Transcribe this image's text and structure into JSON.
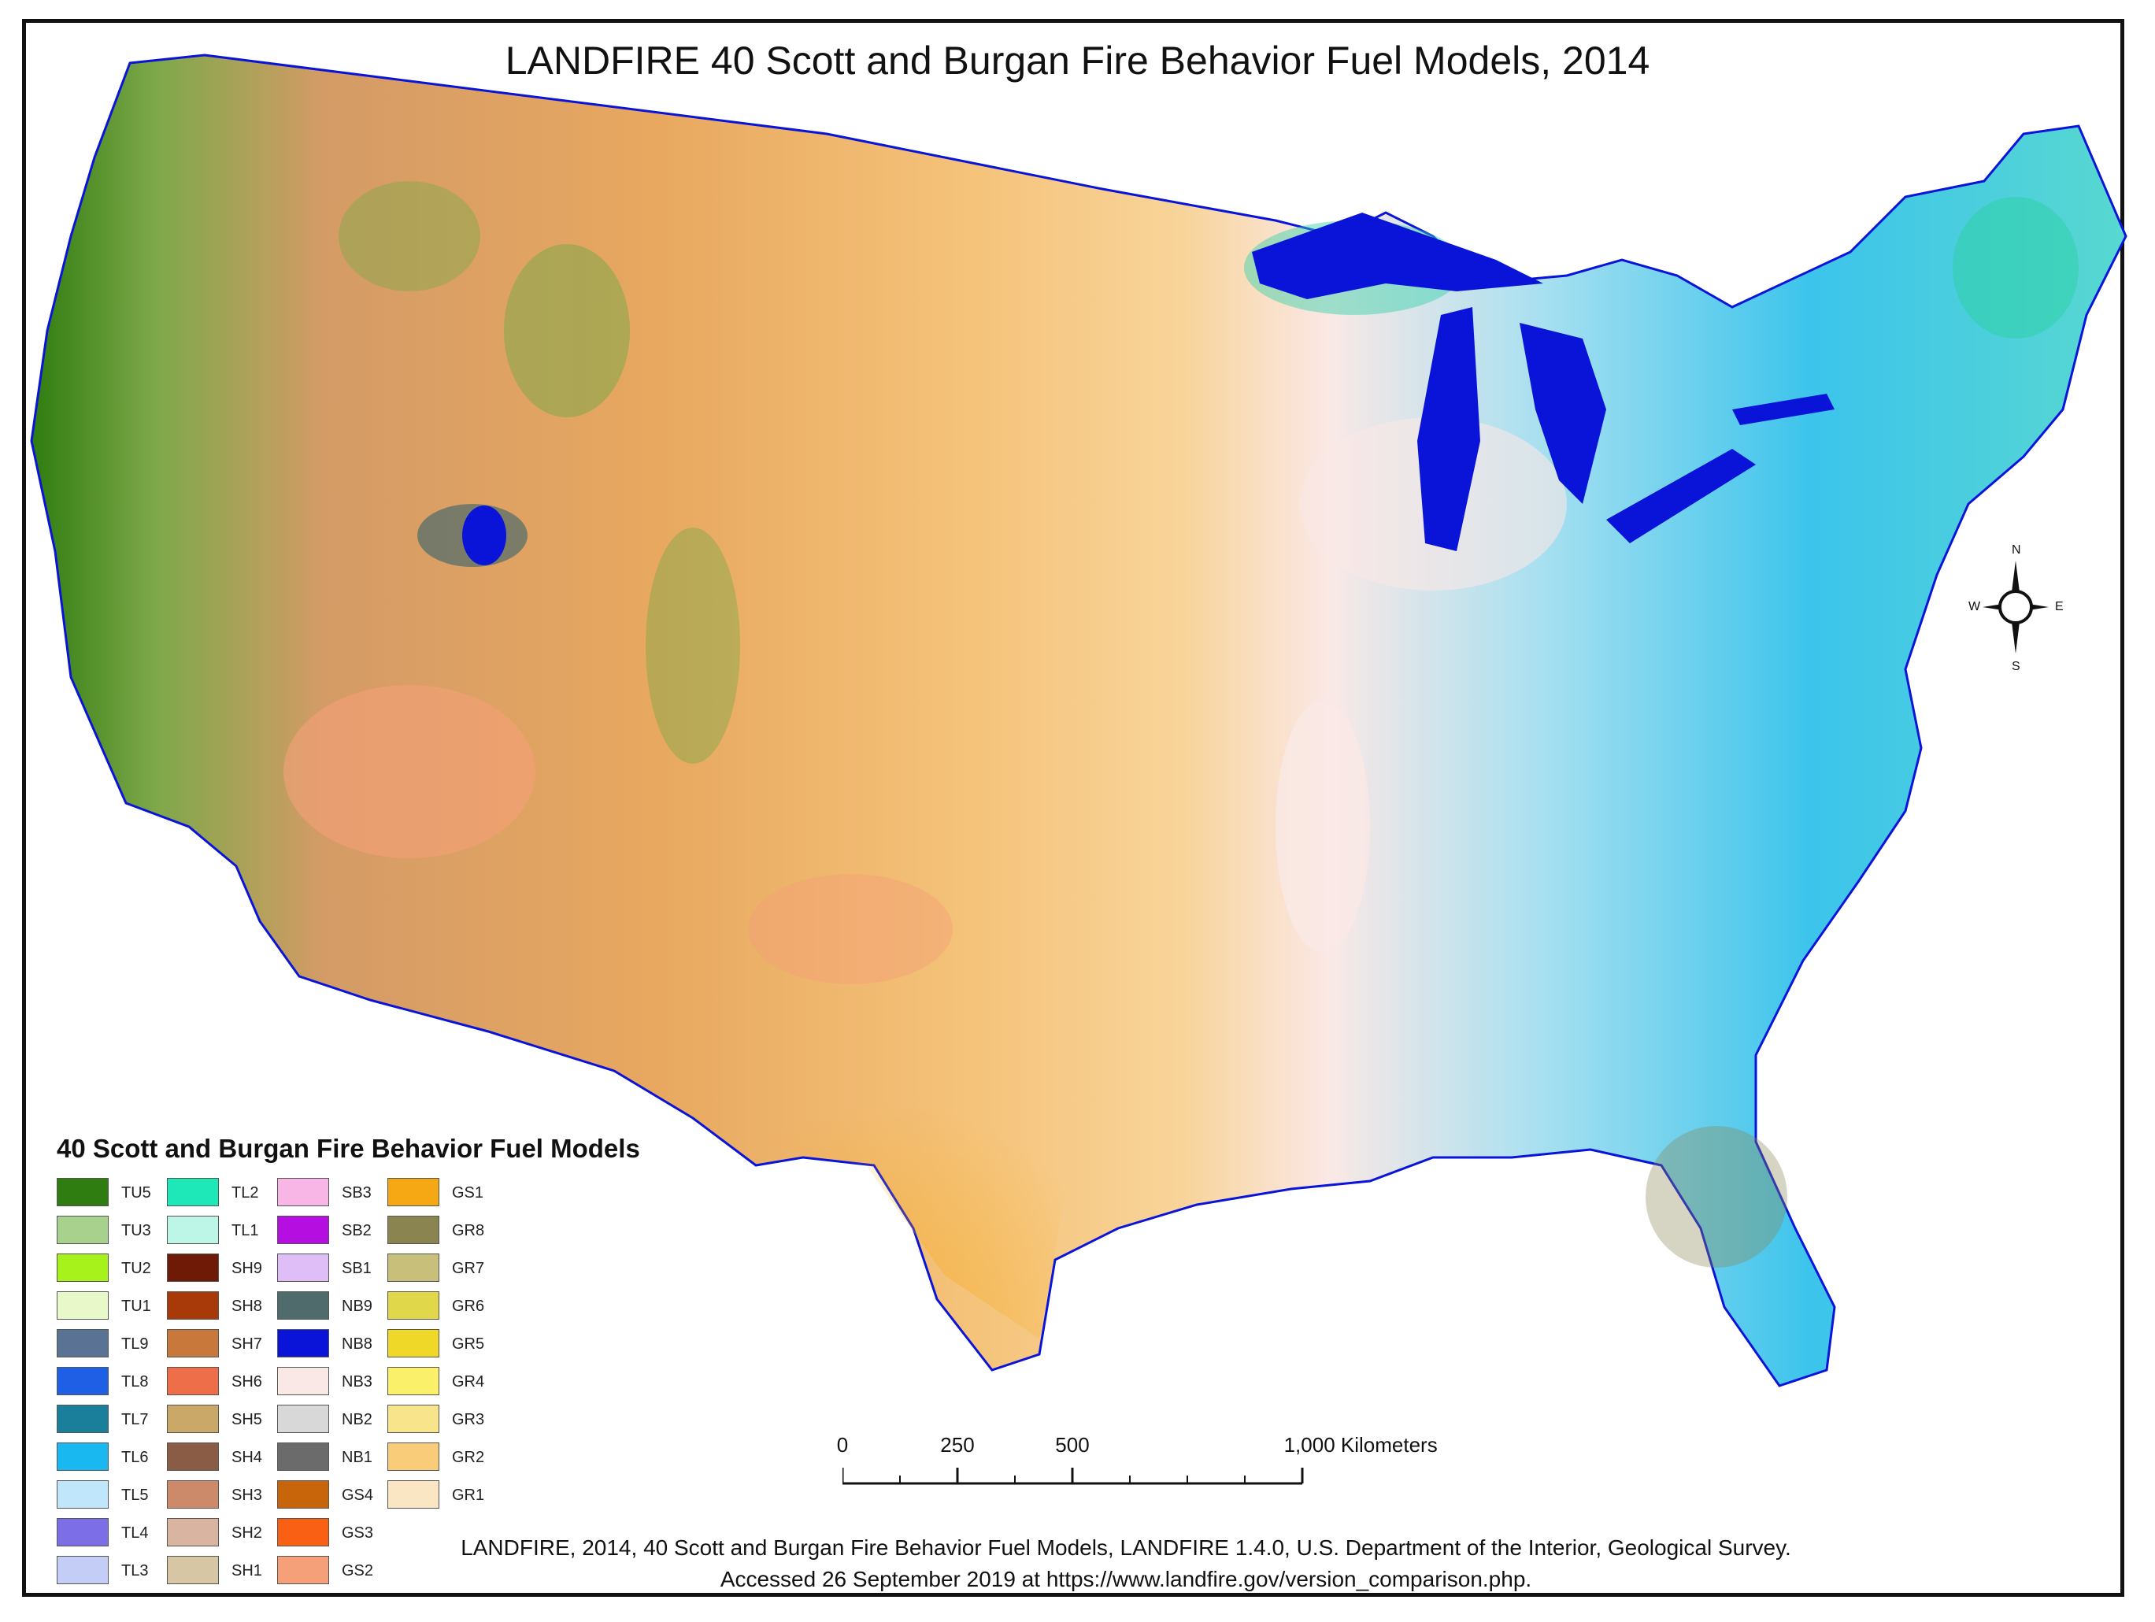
{
  "title": "LANDFIRE 40 Scott and Burgan Fire Behavior Fuel Models, 2014",
  "legend": {
    "title": "40 Scott and Burgan Fire Behavior Fuel Models",
    "columns": [
      [
        {
          "code": "TU5",
          "color": "#2f7d10"
        },
        {
          "code": "TU3",
          "color": "#a9d18e"
        },
        {
          "code": "TU2",
          "color": "#a6f21a"
        },
        {
          "code": "TU1",
          "color": "#e8f8c8"
        },
        {
          "code": "TL9",
          "color": "#5a7394"
        },
        {
          "code": "TL8",
          "color": "#1e5fe6"
        },
        {
          "code": "TL7",
          "color": "#1a7f9a"
        },
        {
          "code": "TL6",
          "color": "#1ab8f0"
        },
        {
          "code": "TL5",
          "color": "#bfe6fb"
        },
        {
          "code": "TL4",
          "color": "#7b6ee6"
        },
        {
          "code": "TL3",
          "color": "#c3cdf5"
        }
      ],
      [
        {
          "code": "TL2",
          "color": "#1ee8b8"
        },
        {
          "code": "TL1",
          "color": "#bdf5e6"
        },
        {
          "code": "SH9",
          "color": "#6e1a06"
        },
        {
          "code": "SH8",
          "color": "#a83a0a"
        },
        {
          "code": "SH7",
          "color": "#c8783a"
        },
        {
          "code": "SH6",
          "color": "#ee6e4a"
        },
        {
          "code": "SH5",
          "color": "#c9a868"
        },
        {
          "code": "SH4",
          "color": "#8a5c46"
        },
        {
          "code": "SH3",
          "color": "#cd8a6a"
        },
        {
          "code": "SH2",
          "color": "#d9b4a0"
        },
        {
          "code": "SH1",
          "color": "#d7c6a3"
        }
      ],
      [
        {
          "code": "SB3",
          "color": "#f7b6e6"
        },
        {
          "code": "SB2",
          "color": "#b40ee0"
        },
        {
          "code": "SB1",
          "color": "#dfbdf7"
        },
        {
          "code": "NB9",
          "color": "#4f6b6b"
        },
        {
          "code": "NB8",
          "color": "#0a14d9"
        },
        {
          "code": "NB3",
          "color": "#fae8e6"
        },
        {
          "code": "NB2",
          "color": "#d8d8d8"
        },
        {
          "code": "NB1",
          "color": "#6b6b6b"
        },
        {
          "code": "GS4",
          "color": "#c8640a"
        },
        {
          "code": "GS3",
          "color": "#fa6014"
        },
        {
          "code": "GS2",
          "color": "#f5a078"
        }
      ],
      [
        {
          "code": "GS1",
          "color": "#f5a814"
        },
        {
          "code": "GR8",
          "color": "#8a8450"
        },
        {
          "code": "GR7",
          "color": "#c8c07a"
        },
        {
          "code": "GR6",
          "color": "#e0d84a"
        },
        {
          "code": "GR5",
          "color": "#f0d828"
        },
        {
          "code": "GR4",
          "color": "#faf06a"
        },
        {
          "code": "GR3",
          "color": "#f8e48a"
        },
        {
          "code": "GR2",
          "color": "#f8cc78"
        },
        {
          "code": "GR1",
          "color": "#fbe6c3"
        }
      ]
    ]
  },
  "scale_bar": {
    "labels": [
      "0",
      "250",
      "500",
      "1,000 Kilometers"
    ],
    "values_km": [
      0,
      250,
      500,
      1000
    ]
  },
  "compass": {
    "north": "N",
    "south": "S",
    "east": "E",
    "west": "W"
  },
  "citation": {
    "line1": "LANDFIRE, 2014, 40 Scott and Burgan Fire Behavior Fuel Models, LANDFIRE 1.4.0, U.S. Department of the Interior, Geological Survey.",
    "line2": "Accessed 26 September 2019 at https://www.landfire.gov/version_comparison.php."
  }
}
